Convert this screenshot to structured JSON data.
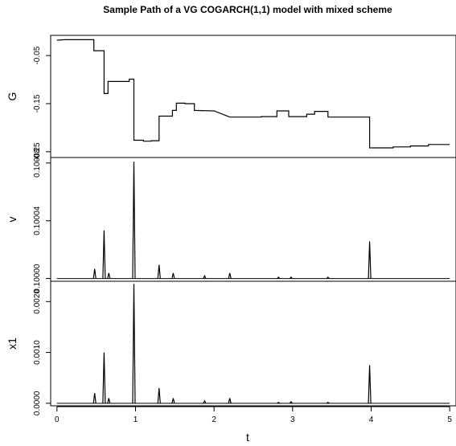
{
  "chart_data": {
    "title": "Sample Path of a VG COGARCH(1,1) model with mixed scheme",
    "xlabel": "t",
    "x_ticks": [
      "0",
      "1",
      "2",
      "3",
      "4",
      "5"
    ],
    "xlim": [
      -0.08,
      5.08
    ],
    "panels": [
      {
        "type": "line",
        "step": true,
        "ylabel": "G",
        "ylim": [
          -0.262,
          -0.008
        ],
        "y_ticks": [
          {
            "value": -0.05,
            "label": "-0.05"
          },
          {
            "value": -0.15,
            "label": "-0.15"
          },
          {
            "value": -0.25,
            "label": "-0.25"
          }
        ],
        "x": [
          0,
          0.1,
          0.47,
          0.47,
          0.52,
          0.6,
          0.6,
          0.63,
          0.65,
          0.65,
          0.92,
          0.92,
          0.98,
          0.98,
          1.1,
          1.1,
          1.2,
          1.2,
          1.3,
          1.3,
          1.47,
          1.47,
          1.52,
          1.52,
          1.63,
          1.63,
          1.75,
          1.75,
          2.0,
          2.2,
          2.6,
          2.6,
          2.8,
          2.8,
          2.95,
          2.95,
          3.18,
          3.18,
          3.28,
          3.28,
          3.45,
          3.45,
          3.98,
          3.98,
          4.28,
          4.28,
          4.5,
          4.5,
          4.73,
          4.73,
          5.0
        ],
        "y": [
          -0.018,
          -0.017,
          -0.017,
          -0.04,
          -0.04,
          -0.04,
          -0.129,
          -0.129,
          -0.129,
          -0.104,
          -0.104,
          -0.099,
          -0.099,
          -0.226,
          -0.226,
          -0.228,
          -0.228,
          -0.227,
          -0.227,
          -0.176,
          -0.176,
          -0.164,
          -0.164,
          -0.149,
          -0.149,
          -0.15,
          -0.15,
          -0.164,
          -0.165,
          -0.178,
          -0.178,
          -0.177,
          -0.177,
          -0.165,
          -0.165,
          -0.177,
          -0.177,
          -0.172,
          -0.172,
          -0.166,
          -0.166,
          -0.178,
          -0.178,
          -0.242,
          -0.242,
          -0.24,
          -0.24,
          -0.238,
          -0.238,
          -0.235,
          -0.235
        ]
      },
      {
        "type": "line",
        "ylabel": "v",
        "ylim": [
          0.099998,
          0.100088
        ],
        "y_ticks": [
          {
            "value": 0.1,
            "label": "0.10000"
          },
          {
            "value": 0.100042,
            "label": "0.10004"
          },
          {
            "value": 0.100084,
            "label": "0.10008"
          }
        ],
        "spikes": [
          {
            "x": 0.48,
            "y": 0.100007
          },
          {
            "x": 0.6,
            "y": 0.100035
          },
          {
            "x": 0.66,
            "y": 0.100004
          },
          {
            "x": 0.98,
            "y": 0.100085
          },
          {
            "x": 1.3,
            "y": 0.10001
          },
          {
            "x": 1.48,
            "y": 0.100004
          },
          {
            "x": 1.88,
            "y": 0.100002
          },
          {
            "x": 2.2,
            "y": 0.100004
          },
          {
            "x": 2.82,
            "y": 0.100001
          },
          {
            "x": 2.98,
            "y": 0.100001
          },
          {
            "x": 3.45,
            "y": 0.100001
          },
          {
            "x": 3.98,
            "y": 0.100027
          }
        ]
      },
      {
        "type": "line",
        "ylabel": "x1",
        "ylim": [
          -5e-05,
          0.0024
        ],
        "y_ticks": [
          {
            "value": 0.0,
            "label": "0.0000"
          },
          {
            "value": 0.001,
            "label": "0.0010"
          },
          {
            "value": 0.002,
            "label": "0.0020"
          }
        ],
        "spikes": [
          {
            "x": 0.48,
            "y": 0.0002
          },
          {
            "x": 0.6,
            "y": 0.001
          },
          {
            "x": 0.66,
            "y": 0.0001
          },
          {
            "x": 0.98,
            "y": 0.00235
          },
          {
            "x": 1.3,
            "y": 0.0003
          },
          {
            "x": 1.48,
            "y": 0.0001
          },
          {
            "x": 1.88,
            "y": 5e-05
          },
          {
            "x": 2.2,
            "y": 0.0001
          },
          {
            "x": 2.82,
            "y": 2e-05
          },
          {
            "x": 2.98,
            "y": 3e-05
          },
          {
            "x": 3.45,
            "y": 2e-05
          },
          {
            "x": 3.98,
            "y": 0.00075
          }
        ]
      }
    ]
  }
}
